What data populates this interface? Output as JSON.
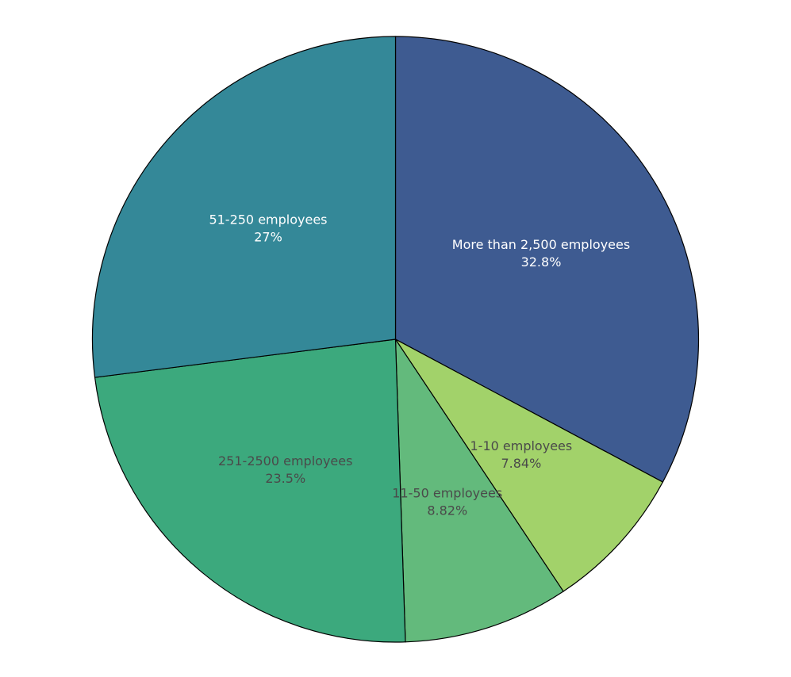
{
  "chart_data": {
    "type": "pie",
    "title": "",
    "slices": [
      {
        "label": "More than 2,500 employees",
        "value": 32.8,
        "display": "32.8%",
        "color": "#3e5b91",
        "text_color": "#ffffff"
      },
      {
        "label": "1-10 employees",
        "value": 7.84,
        "display": "7.84%",
        "color": "#a2d26a",
        "text_color": "#4a4a4a"
      },
      {
        "label": "11-50 employees",
        "value": 8.82,
        "display": "8.82%",
        "color": "#63ba7c",
        "text_color": "#4a4a4a"
      },
      {
        "label": "251-2500 employees",
        "value": 23.5,
        "display": "23.5%",
        "color": "#3ca97d",
        "text_color": "#4a4a4a"
      },
      {
        "label": "51-250 employees",
        "value": 27,
        "display": "27%",
        "color": "#348898",
        "text_color": "#ffffff"
      }
    ],
    "start_angle_deg": 0,
    "direction": "clockwise",
    "legend": "none",
    "labels_inside": true
  }
}
